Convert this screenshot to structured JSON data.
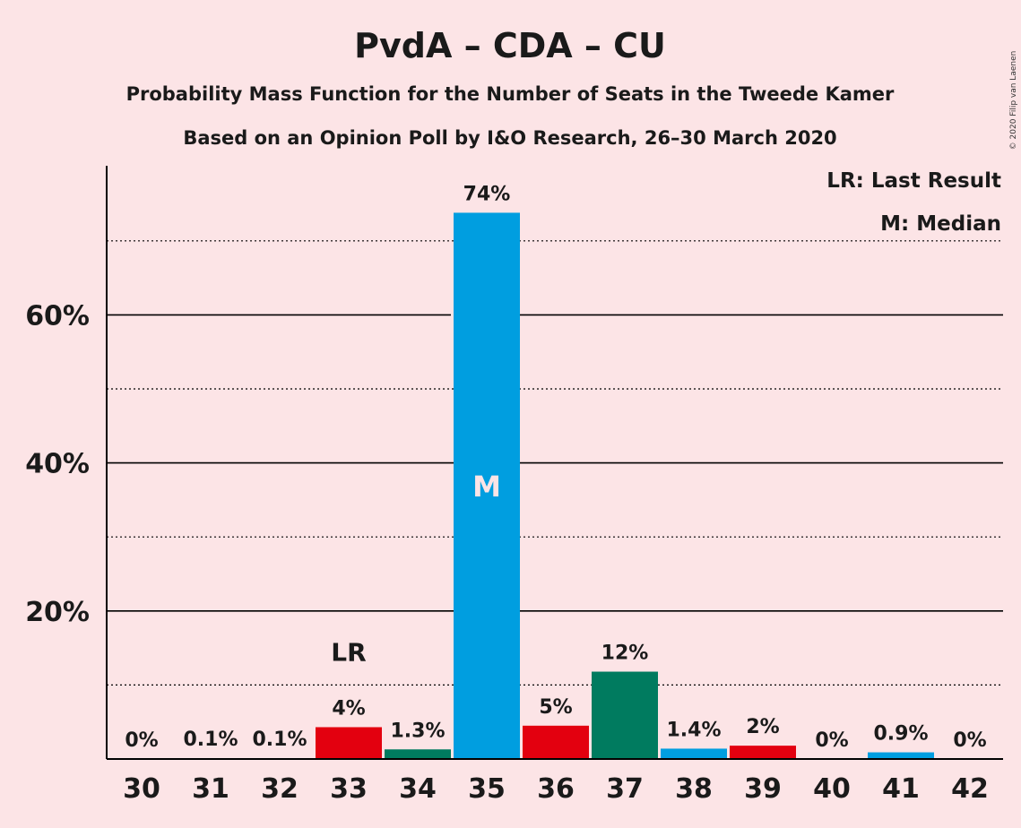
{
  "chart_data": {
    "type": "bar",
    "title": "PvdA – CDA – CU",
    "subtitle": "Probability Mass Function for the Number of Seats in the Tweede Kamer",
    "subtitle2": "Based on an Opinion Poll by I&O Research, 26–30 March 2020",
    "copyright": "© 2020 Filip van Laenen",
    "legend": {
      "last_result": "LR: Last Result",
      "median": "M: Median",
      "placement": "top-right"
    },
    "xlabel": "",
    "ylabel": "",
    "ylim": [
      0,
      80
    ],
    "yticks": [
      {
        "value": 20,
        "label": "20%"
      },
      {
        "value": 40,
        "label": "40%"
      },
      {
        "value": 60,
        "label": "60%"
      }
    ],
    "minor_gridlines": [
      10,
      30,
      50,
      70
    ],
    "categories": [
      "30",
      "31",
      "32",
      "33",
      "34",
      "35",
      "36",
      "37",
      "38",
      "39",
      "40",
      "41",
      "42"
    ],
    "values": [
      0,
      0.1,
      0.1,
      4.3,
      1.3,
      73.8,
      4.5,
      11.8,
      1.4,
      1.8,
      0,
      0.9,
      0
    ],
    "value_labels": [
      "0%",
      "0.1%",
      "0.1%",
      "4%",
      "1.3%",
      "74%",
      "5%",
      "12%",
      "1.4%",
      "2%",
      "0%",
      "0.9%",
      "0%"
    ],
    "bar_colors": [
      "#009EE0",
      "#009EE0",
      "#009EE0",
      "#E3000F",
      "#007B5F",
      "#009EE0",
      "#E3000F",
      "#007B5F",
      "#009EE0",
      "#E3000F",
      "#009EE0",
      "#009EE0",
      "#009EE0"
    ],
    "last_result_category": "33",
    "last_result_label": "LR",
    "median_category": "35",
    "median_label": "M",
    "colors": {
      "background": "#FCE4E6",
      "pvda": "#E3000F",
      "cda": "#007B5F",
      "cu": "#009EE0"
    }
  }
}
